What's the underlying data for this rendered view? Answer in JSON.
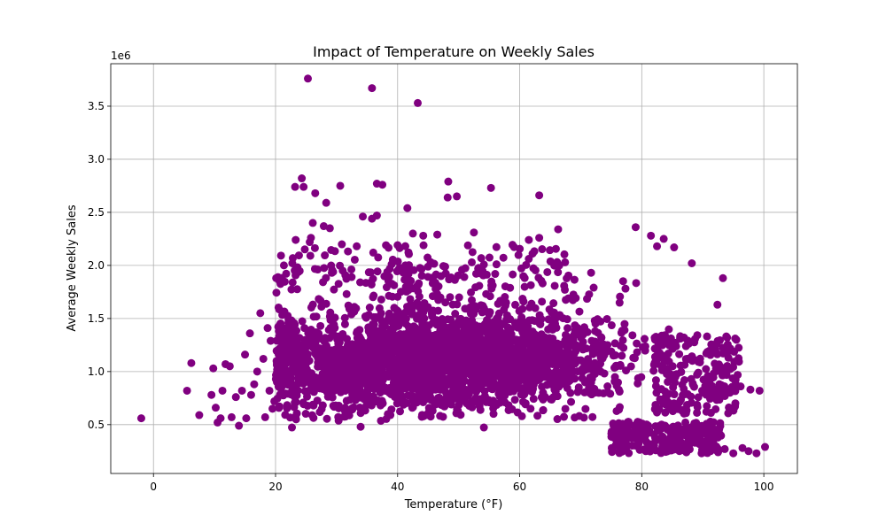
{
  "chart_data": {
    "type": "scatter",
    "title": "Impact of Temperature on Weekly Sales",
    "xlabel": "Temperature (°F)",
    "ylabel": "Average Weekly Sales",
    "y_scale_label": "1e6",
    "xlim": [
      -7,
      105.5
    ],
    "ylim": [
      0.04,
      3.9
    ],
    "x_ticks": [
      0,
      20,
      40,
      60,
      80,
      100
    ],
    "x_tick_labels": [
      "0",
      "20",
      "40",
      "60",
      "80",
      "100"
    ],
    "y_ticks": [
      0.5,
      1.0,
      1.5,
      2.0,
      2.5,
      3.0,
      3.5
    ],
    "y_tick_labels": [
      "0.5",
      "1.0",
      "1.5",
      "2.0",
      "2.5",
      "3.0",
      "3.5"
    ],
    "y_unit": "millions of dollars (1e6)",
    "grid": true,
    "marker_color": "#800080",
    "series": [
      {
        "points": [
          [
            -2,
            0.56
          ],
          [
            5.5,
            0.82
          ],
          [
            6.2,
            1.08
          ],
          [
            7.5,
            0.59
          ],
          [
            9.5,
            0.78
          ],
          [
            9.8,
            1.03
          ],
          [
            10.2,
            0.66
          ],
          [
            10.5,
            0.52
          ],
          [
            11,
            0.56
          ],
          [
            11.3,
            0.82
          ],
          [
            11.8,
            1.07
          ],
          [
            12.5,
            1.05
          ],
          [
            12.8,
            0.57
          ],
          [
            13.5,
            0.76
          ],
          [
            14,
            0.49
          ],
          [
            14.5,
            0.82
          ],
          [
            15,
            1.16
          ],
          [
            15.2,
            0.56
          ],
          [
            15.8,
            1.36
          ],
          [
            16,
            0.78
          ],
          [
            16.5,
            0.88
          ],
          [
            17,
            1.0
          ],
          [
            17.5,
            1.55
          ],
          [
            18,
            1.12
          ],
          [
            18.3,
            0.57
          ],
          [
            18.7,
            1.41
          ],
          [
            19,
            0.82
          ],
          [
            19.2,
            1.29
          ],
          [
            19.5,
            0.65
          ],
          [
            19.8,
            0.72
          ],
          [
            20.1,
            1.88
          ],
          [
            20.4,
            1.89
          ],
          [
            25.3,
            3.76
          ],
          [
            35.8,
            3.67
          ],
          [
            43.3,
            3.53
          ],
          [
            24.3,
            2.82
          ],
          [
            23.2,
            2.74
          ],
          [
            24.6,
            2.74
          ],
          [
            26.5,
            2.68
          ],
          [
            30.6,
            2.75
          ],
          [
            36.6,
            2.77
          ],
          [
            37.5,
            2.76
          ],
          [
            48.3,
            2.79
          ],
          [
            49.7,
            2.65
          ],
          [
            55.3,
            2.73
          ],
          [
            63.2,
            2.66
          ],
          [
            28.3,
            2.59
          ],
          [
            34.3,
            2.46
          ],
          [
            35.8,
            2.44
          ],
          [
            36.6,
            2.47
          ],
          [
            41.6,
            2.54
          ],
          [
            48.2,
            2.64
          ],
          [
            26.1,
            2.4
          ],
          [
            27.9,
            2.37
          ],
          [
            28.9,
            2.35
          ],
          [
            23.3,
            2.24
          ],
          [
            25.6,
            2.22
          ],
          [
            25.8,
            2.26
          ],
          [
            33.3,
            2.18
          ],
          [
            38.1,
            2.19
          ],
          [
            42.5,
            2.3
          ],
          [
            44.2,
            2.28
          ],
          [
            46.5,
            2.29
          ],
          [
            52.5,
            2.31
          ],
          [
            61.5,
            2.24
          ],
          [
            63.2,
            2.26
          ],
          [
            66.3,
            2.34
          ],
          [
            79,
            2.36
          ],
          [
            81.5,
            2.28
          ],
          [
            83.6,
            2.25
          ],
          [
            82.5,
            2.18
          ],
          [
            85.3,
            2.17
          ],
          [
            88.2,
            2.02
          ],
          [
            93.3,
            1.88
          ],
          [
            92.4,
            1.63
          ],
          [
            94.2,
            1.13
          ],
          [
            99.3,
            0.82
          ],
          [
            100.2,
            0.29
          ],
          [
            97.5,
            0.25
          ],
          [
            98.8,
            0.23
          ],
          [
            96.5,
            0.28
          ],
          [
            95,
            0.23
          ],
          [
            93.6,
            0.27
          ],
          [
            92.5,
            0.24
          ],
          [
            91.2,
            0.26
          ],
          [
            89.8,
            0.23
          ],
          [
            97.8,
            0.83
          ],
          [
            96.2,
            0.86
          ],
          [
            95.4,
            0.88
          ]
        ]
      }
    ]
  }
}
